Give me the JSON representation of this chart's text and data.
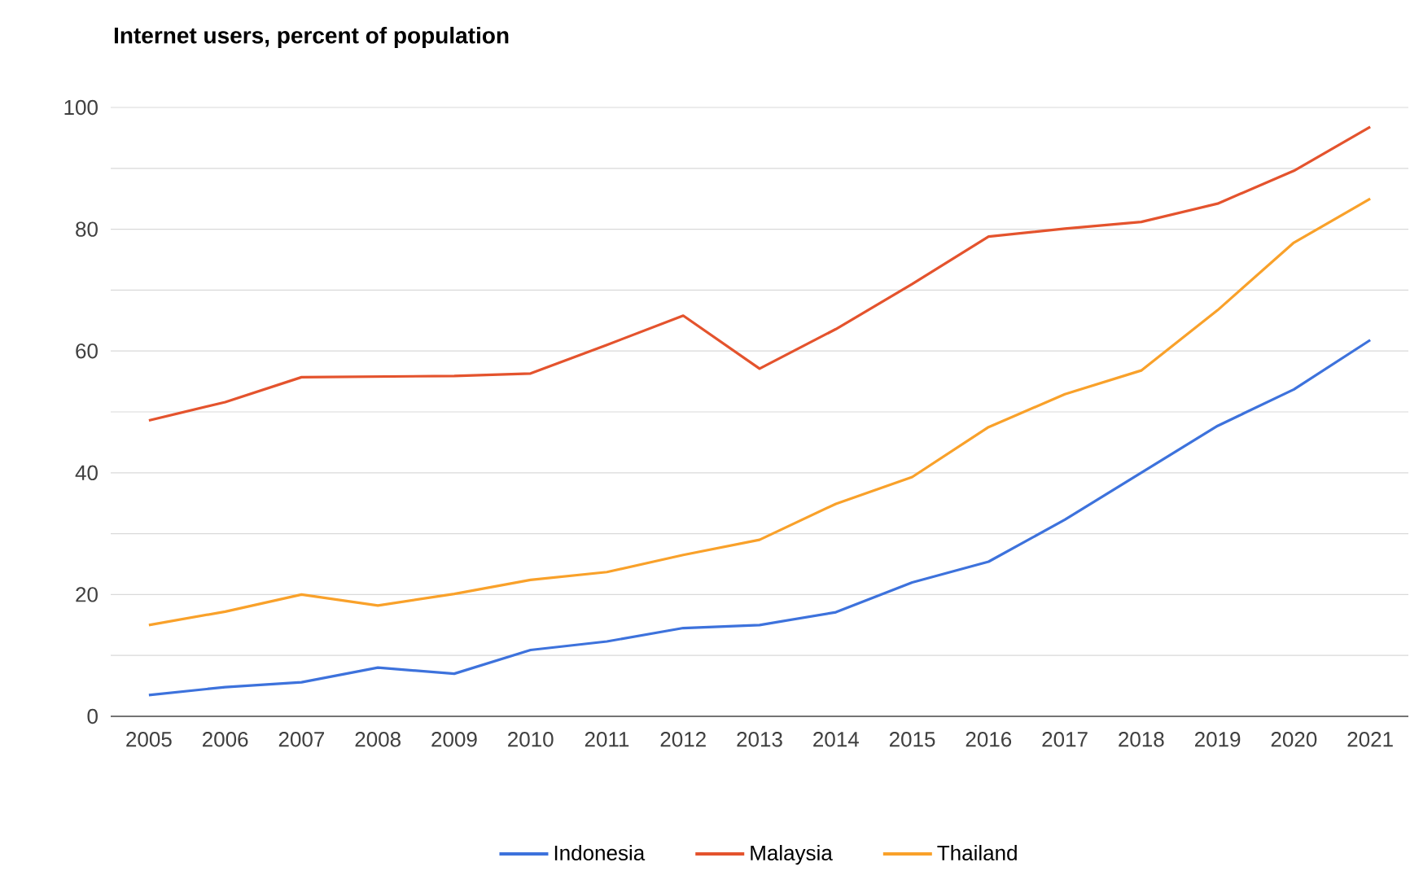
{
  "chart_data": {
    "type": "line",
    "title": "Internet users, percent of population",
    "x": [
      2005,
      2006,
      2007,
      2008,
      2009,
      2010,
      2011,
      2012,
      2013,
      2014,
      2015,
      2016,
      2017,
      2018,
      2019,
      2020,
      2021
    ],
    "series": [
      {
        "name": "Indonesia",
        "color": "#3d72dc",
        "values": [
          3.5,
          4.8,
          5.6,
          8,
          7,
          10.9,
          12.3,
          14.5,
          15,
          17.1,
          22,
          25.4,
          32.3,
          40,
          47.7,
          53.7,
          61.8
        ]
      },
      {
        "name": "Malaysia",
        "color": "#e4532d",
        "values": [
          48.6,
          51.6,
          55.7,
          55.8,
          55.9,
          56.3,
          61,
          65.8,
          57.1,
          63.6,
          71,
          78.8,
          80.1,
          81.2,
          84.2,
          89.6,
          96.8
        ]
      },
      {
        "name": "Thailand",
        "color": "#f9a12a",
        "values": [
          15,
          17.2,
          20,
          18.2,
          20.1,
          22.4,
          23.7,
          26.5,
          29,
          34.9,
          39.3,
          47.5,
          52.9,
          56.8,
          66.7,
          77.8,
          85
        ]
      }
    ],
    "xlim": [
      2004.5,
      2021.5
    ],
    "xticks": [
      2005,
      2006,
      2007,
      2008,
      2009,
      2010,
      2011,
      2012,
      2013,
      2014,
      2015,
      2016,
      2017,
      2018,
      2019,
      2020,
      2021
    ],
    "ylim": [
      0,
      100
    ],
    "yticks": [
      0,
      {
        "value": 10,
        "label": null
      },
      20,
      {
        "value": 30,
        "label": null
      },
      40,
      {
        "value": 50,
        "label": null
      },
      60,
      {
        "value": 70,
        "label": null
      },
      80,
      {
        "value": 90,
        "label": null
      },
      100
    ],
    "grid": "y",
    "legend": "bottom",
    "marker": "none",
    "line_style": "solid"
  }
}
